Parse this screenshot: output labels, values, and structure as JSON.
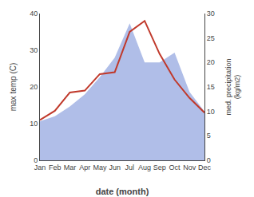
{
  "chart_data": {
    "type": "line",
    "xlabel": "date (month)",
    "ylabel": "max temp (C)",
    "y2label": "med. precipitation\n(kg/m2)",
    "categories": [
      "Jan",
      "Feb",
      "Mar",
      "Apr",
      "May",
      "Jun",
      "Jul",
      "Aug",
      "Sep",
      "Oct",
      "Nov",
      "Dec"
    ],
    "series": [
      {
        "type": "area",
        "axis": "y2",
        "color": "#b0bee8",
        "values": [
          8.0,
          9.0,
          11.0,
          13.5,
          17.0,
          21.0,
          28.0,
          20.0,
          20.0,
          22.0,
          14.0,
          10.0
        ]
      },
      {
        "type": "line",
        "color": "#c0392b",
        "values": [
          11.0,
          13.5,
          18.5,
          19.0,
          23.5,
          24.0,
          35.0,
          38.0,
          29.0,
          22.0,
          17.0,
          13.0
        ]
      }
    ],
    "ylim": [
      0,
      40
    ],
    "yticks": [
      0,
      10,
      20,
      30,
      40
    ],
    "y2lim": [
      0,
      30
    ],
    "y2ticks": [
      0,
      5,
      10,
      15,
      20,
      25,
      30
    ],
    "grid": false
  }
}
